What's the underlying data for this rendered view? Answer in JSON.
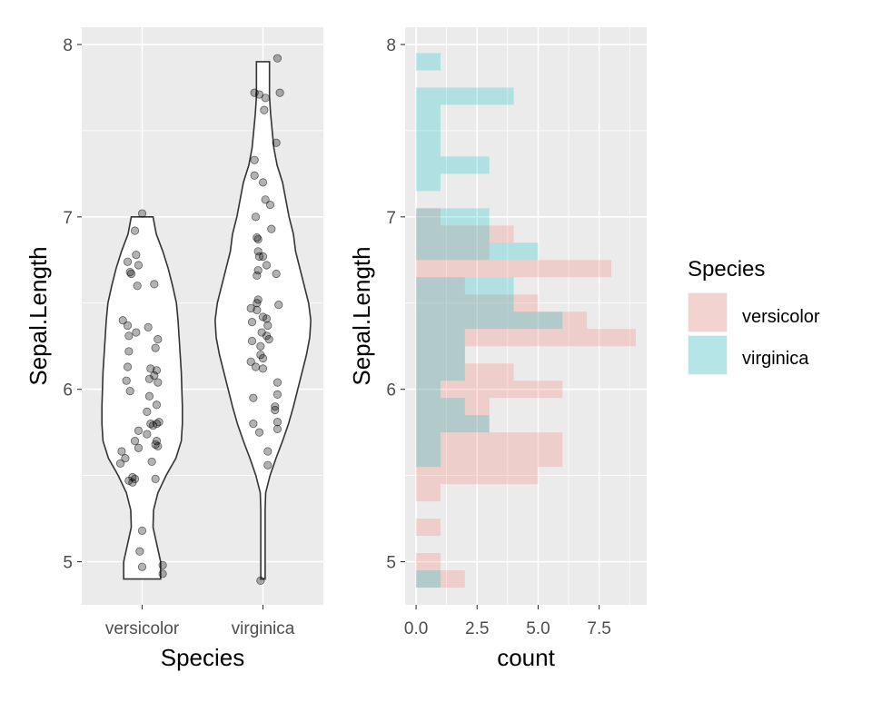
{
  "chart_data": [
    {
      "type": "violin",
      "panel": "left",
      "xlabel": "Species",
      "ylabel": "Sepal.Length",
      "categories": [
        "versicolor",
        "virginica"
      ],
      "ylim": [
        4.75,
        8.1
      ],
      "yticks": [
        5,
        6,
        7,
        8
      ],
      "grid": true,
      "background": "#ebebeb",
      "violins": [
        {
          "category": "versicolor",
          "profile": [
            [
              4.9,
              0.34
            ],
            [
              5.0,
              0.34
            ],
            [
              5.1,
              0.27
            ],
            [
              5.2,
              0.2
            ],
            [
              5.3,
              0.21
            ],
            [
              5.4,
              0.29
            ],
            [
              5.5,
              0.44
            ],
            [
              5.6,
              0.62
            ],
            [
              5.7,
              0.72
            ],
            [
              5.8,
              0.74
            ],
            [
              5.9,
              0.74
            ],
            [
              6.0,
              0.73
            ],
            [
              6.1,
              0.72
            ],
            [
              6.2,
              0.7
            ],
            [
              6.3,
              0.68
            ],
            [
              6.4,
              0.66
            ],
            [
              6.5,
              0.63
            ],
            [
              6.6,
              0.56
            ],
            [
              6.7,
              0.48
            ],
            [
              6.8,
              0.38
            ],
            [
              6.9,
              0.26
            ],
            [
              7.0,
              0.2
            ]
          ]
        },
        {
          "category": "virginica",
          "profile": [
            [
              4.9,
              0.04
            ],
            [
              5.0,
              0.04
            ],
            [
              5.1,
              0.04
            ],
            [
              5.2,
              0.04
            ],
            [
              5.3,
              0.04
            ],
            [
              5.4,
              0.05
            ],
            [
              5.5,
              0.13
            ],
            [
              5.6,
              0.24
            ],
            [
              5.7,
              0.36
            ],
            [
              5.8,
              0.47
            ],
            [
              5.9,
              0.56
            ],
            [
              6.0,
              0.64
            ],
            [
              6.1,
              0.72
            ],
            [
              6.2,
              0.8
            ],
            [
              6.3,
              0.86
            ],
            [
              6.4,
              0.88
            ],
            [
              6.5,
              0.84
            ],
            [
              6.6,
              0.76
            ],
            [
              6.7,
              0.68
            ],
            [
              6.8,
              0.6
            ],
            [
              6.9,
              0.56
            ],
            [
              7.0,
              0.48
            ],
            [
              7.1,
              0.42
            ],
            [
              7.2,
              0.36
            ],
            [
              7.3,
              0.26
            ],
            [
              7.4,
              0.2
            ],
            [
              7.5,
              0.17
            ],
            [
              7.6,
              0.14
            ],
            [
              7.7,
              0.12
            ],
            [
              7.8,
              0.12
            ],
            [
              7.9,
              0.12
            ]
          ]
        }
      ],
      "points": {
        "versicolor": [
          [
            0.0,
            7.02
          ],
          [
            -0.06,
            6.92
          ],
          [
            -0.12,
            6.74
          ],
          [
            -0.05,
            6.78
          ],
          [
            -0.03,
            6.72
          ],
          [
            -0.1,
            6.68
          ],
          [
            -0.09,
            6.67
          ],
          [
            0.1,
            6.61
          ],
          [
            -0.04,
            6.6
          ],
          [
            -0.16,
            6.4
          ],
          [
            -0.12,
            6.37
          ],
          [
            0.05,
            6.36
          ],
          [
            -0.05,
            6.33
          ],
          [
            -0.11,
            6.31
          ],
          [
            0.13,
            6.29
          ],
          [
            0.11,
            6.24
          ],
          [
            -0.11,
            6.22
          ],
          [
            -0.12,
            6.13
          ],
          [
            0.07,
            6.12
          ],
          [
            0.12,
            6.11
          ],
          [
            -0.13,
            6.05
          ],
          [
            0.13,
            6.04
          ],
          [
            0.1,
            6.08
          ],
          [
            0.06,
            6.06
          ],
          [
            -0.1,
            5.99
          ],
          [
            0.06,
            5.96
          ],
          [
            0.12,
            5.91
          ],
          [
            0.04,
            5.87
          ],
          [
            0.12,
            5.8
          ],
          [
            0.14,
            5.81
          ],
          [
            0.07,
            5.8
          ],
          [
            -0.03,
            5.76
          ],
          [
            0.09,
            5.79
          ],
          [
            0.04,
            5.74
          ],
          [
            -0.06,
            5.7
          ],
          [
            0.12,
            5.7
          ],
          [
            0.11,
            5.68
          ],
          [
            0.13,
            5.67
          ],
          [
            -0.03,
            5.66
          ],
          [
            -0.17,
            5.64
          ],
          [
            -0.14,
            5.6
          ],
          [
            0.08,
            5.58
          ],
          [
            -0.18,
            5.57
          ],
          [
            0.11,
            5.48
          ],
          [
            -0.08,
            5.49
          ],
          [
            -0.11,
            5.47
          ],
          [
            -0.06,
            5.48
          ],
          [
            -0.08,
            5.46
          ],
          [
            0.0,
            5.18
          ],
          [
            -0.02,
            5.06
          ],
          [
            0.17,
            4.98
          ],
          [
            0.0,
            4.97
          ],
          [
            0.17,
            4.93
          ]
        ],
        "virginica": [
          [
            0.12,
            7.92
          ],
          [
            -0.07,
            7.72
          ],
          [
            -0.03,
            7.71
          ],
          [
            0.02,
            7.69
          ],
          [
            0.14,
            7.72
          ],
          [
            0.01,
            7.62
          ],
          [
            0.11,
            7.43
          ],
          [
            -0.07,
            7.33
          ],
          [
            -0.07,
            7.24
          ],
          [
            0.0,
            7.2
          ],
          [
            0.06,
            7.07
          ],
          [
            0.02,
            7.1
          ],
          [
            -0.06,
            7.0
          ],
          [
            0.07,
            6.93
          ],
          [
            -0.05,
            6.88
          ],
          [
            -0.04,
            6.87
          ],
          [
            -0.04,
            6.8
          ],
          [
            -0.03,
            6.77
          ],
          [
            0.0,
            6.77
          ],
          [
            0.03,
            6.72
          ],
          [
            -0.04,
            6.69
          ],
          [
            -0.05,
            6.66
          ],
          [
            0.11,
            6.67
          ],
          [
            -0.04,
            6.52
          ],
          [
            -0.05,
            6.5
          ],
          [
            0.13,
            6.49
          ],
          [
            -0.1,
            6.47
          ],
          [
            -0.05,
            6.46
          ],
          [
            0.0,
            6.42
          ],
          [
            0.03,
            6.41
          ],
          [
            0.04,
            6.37
          ],
          [
            -0.09,
            6.39
          ],
          [
            -0.01,
            6.33
          ],
          [
            0.03,
            6.31
          ],
          [
            0.05,
            6.29
          ],
          [
            -0.09,
            6.28
          ],
          [
            -0.02,
            6.25
          ],
          [
            -0.02,
            6.2
          ],
          [
            0.0,
            6.18
          ],
          [
            -0.1,
            6.16
          ],
          [
            -0.06,
            6.13
          ],
          [
            0.0,
            6.12
          ],
          [
            0.12,
            6.04
          ],
          [
            0.12,
            5.97
          ],
          [
            -0.08,
            5.95
          ],
          [
            0.1,
            5.9
          ],
          [
            0.1,
            5.88
          ],
          [
            0.12,
            5.81
          ],
          [
            -0.08,
            5.8
          ],
          [
            0.12,
            5.77
          ],
          [
            -0.03,
            5.75
          ],
          [
            0.04,
            5.64
          ],
          [
            0.04,
            5.56
          ],
          [
            -0.02,
            4.89
          ]
        ]
      }
    },
    {
      "type": "histogram",
      "panel": "right",
      "orientation": "horizontal",
      "xlabel": "count",
      "ylabel": "Sepal.Length",
      "xticks": [
        0.0,
        2.5,
        5.0,
        7.5
      ],
      "xtick_labels": [
        "0.0",
        "2.5",
        "5.0",
        "7.5"
      ],
      "yticks": [
        5,
        6,
        7,
        8
      ],
      "xlim": [
        -0.45,
        9.45
      ],
      "ylim": [
        4.75,
        8.1
      ],
      "bin_width": 0.1,
      "grid": true,
      "background": "#ebebeb",
      "series": [
        {
          "name": "versicolor",
          "color": "#f8766d",
          "opacity": 0.25,
          "bins": [
            [
              4.9,
              2
            ],
            [
              5.0,
              1
            ],
            [
              5.1,
              0
            ],
            [
              5.2,
              1
            ],
            [
              5.3,
              0
            ],
            [
              5.4,
              1
            ],
            [
              5.5,
              5
            ],
            [
              5.6,
              6
            ],
            [
              5.7,
              6
            ],
            [
              5.8,
              3
            ],
            [
              5.9,
              3
            ],
            [
              6.0,
              6
            ],
            [
              6.1,
              4
            ],
            [
              6.2,
              2
            ],
            [
              6.3,
              9
            ],
            [
              6.4,
              7
            ],
            [
              6.5,
              5
            ],
            [
              6.6,
              2
            ],
            [
              6.7,
              8
            ],
            [
              6.8,
              3
            ],
            [
              6.9,
              4
            ],
            [
              7.0,
              1
            ]
          ]
        },
        {
          "name": "virginica",
          "color": "#00bfc4",
          "opacity": 0.25,
          "bins": [
            [
              4.9,
              1
            ],
            [
              5.0,
              0
            ],
            [
              5.1,
              0
            ],
            [
              5.2,
              0
            ],
            [
              5.3,
              0
            ],
            [
              5.4,
              0
            ],
            [
              5.5,
              0
            ],
            [
              5.6,
              1
            ],
            [
              5.7,
              1
            ],
            [
              5.8,
              3
            ],
            [
              5.9,
              2
            ],
            [
              6.0,
              1
            ],
            [
              6.1,
              2
            ],
            [
              6.2,
              2
            ],
            [
              6.3,
              2
            ],
            [
              6.4,
              6
            ],
            [
              6.5,
              4
            ],
            [
              6.6,
              4
            ],
            [
              6.7,
              0
            ],
            [
              6.8,
              5
            ],
            [
              6.9,
              3
            ],
            [
              7.0,
              3
            ],
            [
              7.1,
              0
            ],
            [
              7.2,
              1
            ],
            [
              7.3,
              3
            ],
            [
              7.4,
              1
            ],
            [
              7.5,
              1
            ],
            [
              7.6,
              1
            ],
            [
              7.7,
              4
            ],
            [
              7.8,
              0
            ],
            [
              7.9,
              1
            ]
          ]
        }
      ]
    }
  ],
  "legend": {
    "title": "Species",
    "position": "right",
    "items": [
      {
        "label": "versicolor",
        "color": "#f8766d"
      },
      {
        "label": "virginica",
        "color": "#00bfc4"
      }
    ]
  }
}
